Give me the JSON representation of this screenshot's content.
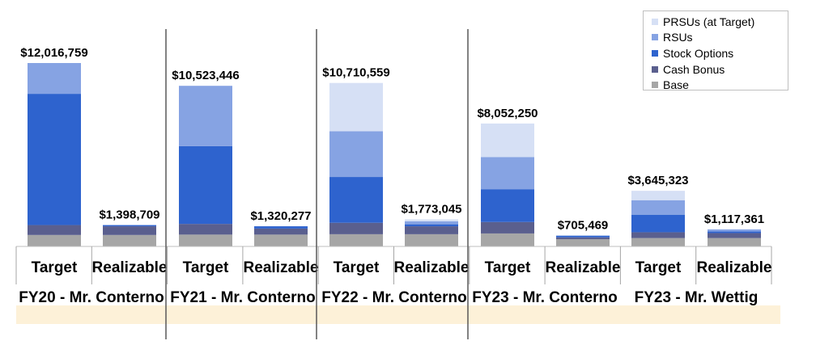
{
  "chart_data": {
    "type": "bar",
    "stacked": true,
    "title": "",
    "xlabel": "",
    "ylabel": "",
    "ylim": [
      0,
      12500000
    ],
    "grid": false,
    "legend_position": "top-right",
    "groups": [
      "FY20 - Mr. Conterno",
      "FY21 - Mr. Conterno",
      "FY22 - Mr. Conterno",
      "FY23 - Mr. Conterno",
      "FY23 - Mr. Wettig"
    ],
    "categories": [
      "Target",
      "Realizable",
      "Target",
      "Realizable",
      "Target",
      "Realizable",
      "Target",
      "Realizable",
      "Target",
      "Realizable"
    ],
    "totals_labels": [
      "$12,016,759",
      "$1,398,709",
      "$10,523,446",
      "$1,320,277",
      "$10,710,559",
      "$1,773,045",
      "$8,052,250",
      "$705,469",
      "$3,645,323",
      "$1,117,361"
    ],
    "totals": [
      12016759,
      1398709,
      10523446,
      1320277,
      10710559,
      1773045,
      8052250,
      705469,
      3645323,
      1117361
    ],
    "series": [
      {
        "name": "Base",
        "color": "#a6a6a6",
        "values": [
          750000,
          750000,
          775000,
          775000,
          800000,
          800000,
          850000,
          475000,
          550000,
          550000
        ]
      },
      {
        "name": "Cash Bonus",
        "color": "#5a5f8e",
        "values": [
          650000,
          568709,
          700000,
          395277,
          750000,
          520000,
          750000,
          120000,
          380000,
          325000
        ]
      },
      {
        "name": "Stock Options",
        "color": "#2e63ce",
        "values": [
          8600000,
          80000,
          5100000,
          150000,
          3000000,
          130000,
          2150000,
          110469,
          1150000,
          110000
        ]
      },
      {
        "name": "RSUs",
        "color": "#86a3e3",
        "values": [
          2016759,
          0,
          3948446,
          0,
          3000000,
          200000,
          2100000,
          0,
          950000,
          132361
        ]
      },
      {
        "name": "PRSUs (at Target)",
        "color": "#d6e0f5",
        "values": [
          0,
          0,
          0,
          0,
          3160559,
          123045,
          2202250,
          0,
          615323,
          0
        ]
      }
    ]
  }
}
